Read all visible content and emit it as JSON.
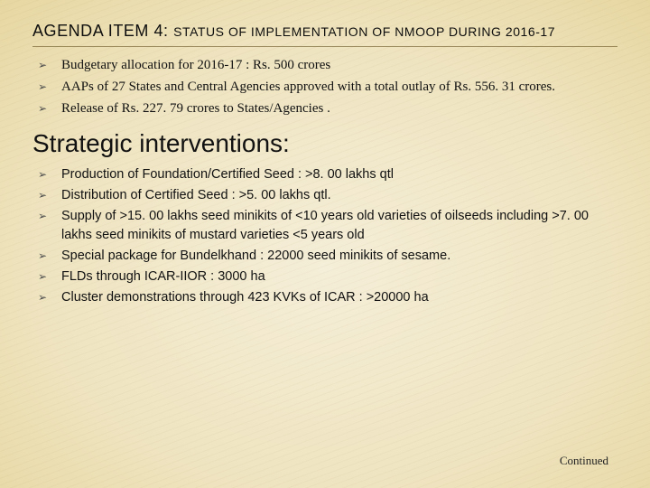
{
  "title_main": "AGENDA ITEM 4: ",
  "title_sub": "STATUS OF IMPLEMENTATION OF NMOOP  DURING 2016-17",
  "top_bullets": [
    "Budgetary allocation for 2016-17 :  Rs. 500 crores",
    "AAPs of 27 States and Central Agencies approved with a total outlay of Rs. 556. 31 crores.",
    "Release of Rs. 227. 79 crores to States/Agencies ."
  ],
  "subheading": "Strategic interventions:",
  "bottom_bullets": [
    "Production of Foundation/Certified Seed :  >8. 00 lakhs qtl",
    "Distribution of Certified Seed : >5. 00 lakhs qtl.",
    "Supply of >15. 00 lakhs seed minikits of <10 years old varieties of oilseeds including >7. 00 lakhs seed minikits of mustard varieties <5 years old",
    "Special package for Bundelkhand :  22000 seed minikits of sesame.",
    "FLDs  through ICAR-IIOR : 3000 ha",
    "Cluster demonstrations through 423 KVKs of ICAR : >20000 ha"
  ],
  "continued": "Continued"
}
